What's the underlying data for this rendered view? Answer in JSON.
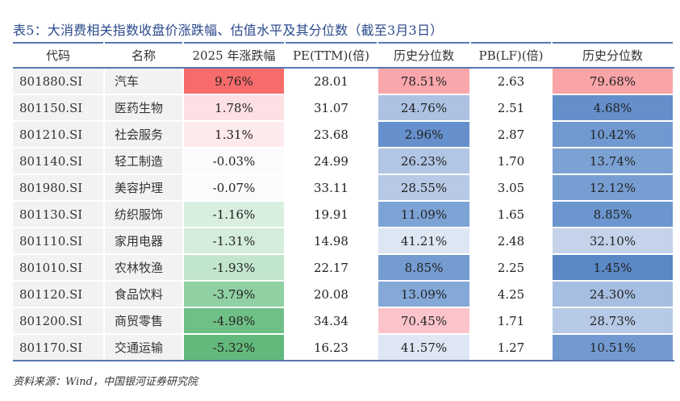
{
  "title": "表5：大消费相关指数收盘价涨跌幅、估值水平及其分位数（截至3月3日）",
  "headers": [
    "代码",
    "名称",
    "2025 年涨跌幅",
    "PE(TTM)(倍)",
    "历史分位数",
    "PB(LF)(倍)",
    "历史分位数"
  ],
  "rows": [
    {
      "code": "801880.SI",
      "name": "汽车",
      "change": "9.76%",
      "pe": "28.01",
      "pe_pct": "78.51%",
      "pb": "2.63",
      "pb_pct": "79.68%",
      "change_color": "#f76b6b",
      "pe_pct_color": "#f9a7ad",
      "pb_pct_color": "#f9a4a7"
    },
    {
      "code": "801150.SI",
      "name": "医药生物",
      "change": "1.78%",
      "pe": "31.07",
      "pe_pct": "24.76%",
      "pb": "2.51",
      "pb_pct": "4.68%",
      "change_color": "#fde0e3",
      "pe_pct_color": "#adc2e3",
      "pb_pct_color": "#648fcb"
    },
    {
      "code": "801210.SI",
      "name": "社会服务",
      "change": "1.31%",
      "pe": "23.68",
      "pe_pct": "2.96%",
      "pb": "2.87",
      "pb_pct": "10.42%",
      "change_color": "#fdeaec",
      "pe_pct_color": "#6590cc",
      "pb_pct_color": "#7199d1"
    },
    {
      "code": "801140.SI",
      "name": "轻工制造",
      "change": "-0.03%",
      "pe": "24.99",
      "pe_pct": "26.23%",
      "pb": "1.70",
      "pb_pct": "13.74%",
      "change_color": "#fbfbfd",
      "pe_pct_color": "#b1c5e4",
      "pb_pct_color": "#7ca2d4"
    },
    {
      "code": "801980.SI",
      "name": "美容护理",
      "change": "-0.07%",
      "pe": "33.11",
      "pe_pct": "28.55%",
      "pb": "3.05",
      "pb_pct": "12.12%",
      "change_color": "#fafcfa",
      "pe_pct_color": "#b7c9e6",
      "pb_pct_color": "#779ed2"
    },
    {
      "code": "801130.SI",
      "name": "纺织服饰",
      "change": "-1.16%",
      "pe": "19.91",
      "pe_pct": "11.09%",
      "pb": "1.65",
      "pb_pct": "8.85%",
      "change_color": "#d8efdf",
      "pe_pct_color": "#7da3d5",
      "pb_pct_color": "#6c96cf"
    },
    {
      "code": "801110.SI",
      "name": "家用电器",
      "change": "-1.31%",
      "pe": "14.98",
      "pe_pct": "41.21%",
      "pb": "2.48",
      "pb_pct": "32.10%",
      "change_color": "#d4eddb",
      "pe_pct_color": "#dde6f3",
      "pb_pct_color": "#c4d3ea"
    },
    {
      "code": "801010.SI",
      "name": "农林牧渔",
      "change": "-1.93%",
      "pe": "22.17",
      "pe_pct": "8.85%",
      "pb": "2.25",
      "pb_pct": "1.45%",
      "change_color": "#c2e6cc",
      "pe_pct_color": "#749cd1",
      "pb_pct_color": "#5a87c6"
    },
    {
      "code": "801120.SI",
      "name": "食品饮料",
      "change": "-3.79%",
      "pe": "20.08",
      "pe_pct": "13.09%",
      "pb": "4.25",
      "pb_pct": "24.30%",
      "change_color": "#90d0a2",
      "pe_pct_color": "#84a8d8",
      "pb_pct_color": "#a6bee1"
    },
    {
      "code": "801200.SI",
      "name": "商贸零售",
      "change": "-4.98%",
      "pe": "34.34",
      "pe_pct": "70.45%",
      "pb": "1.71",
      "pb_pct": "28.73%",
      "change_color": "#6fc087",
      "pe_pct_color": "#fbc4cb",
      "pb_pct_color": "#b6c9e6"
    },
    {
      "code": "801170.SI",
      "name": "交通运输",
      "change": "-5.32%",
      "pe": "16.23",
      "pe_pct": "41.57%",
      "pb": "1.27",
      "pb_pct": "10.51%",
      "change_color": "#62b97b",
      "pe_pct_color": "#dee6f3",
      "pb_pct_color": "#729ad1"
    }
  ],
  "source": "资料来源：Wind，中国银河证券研究院"
}
